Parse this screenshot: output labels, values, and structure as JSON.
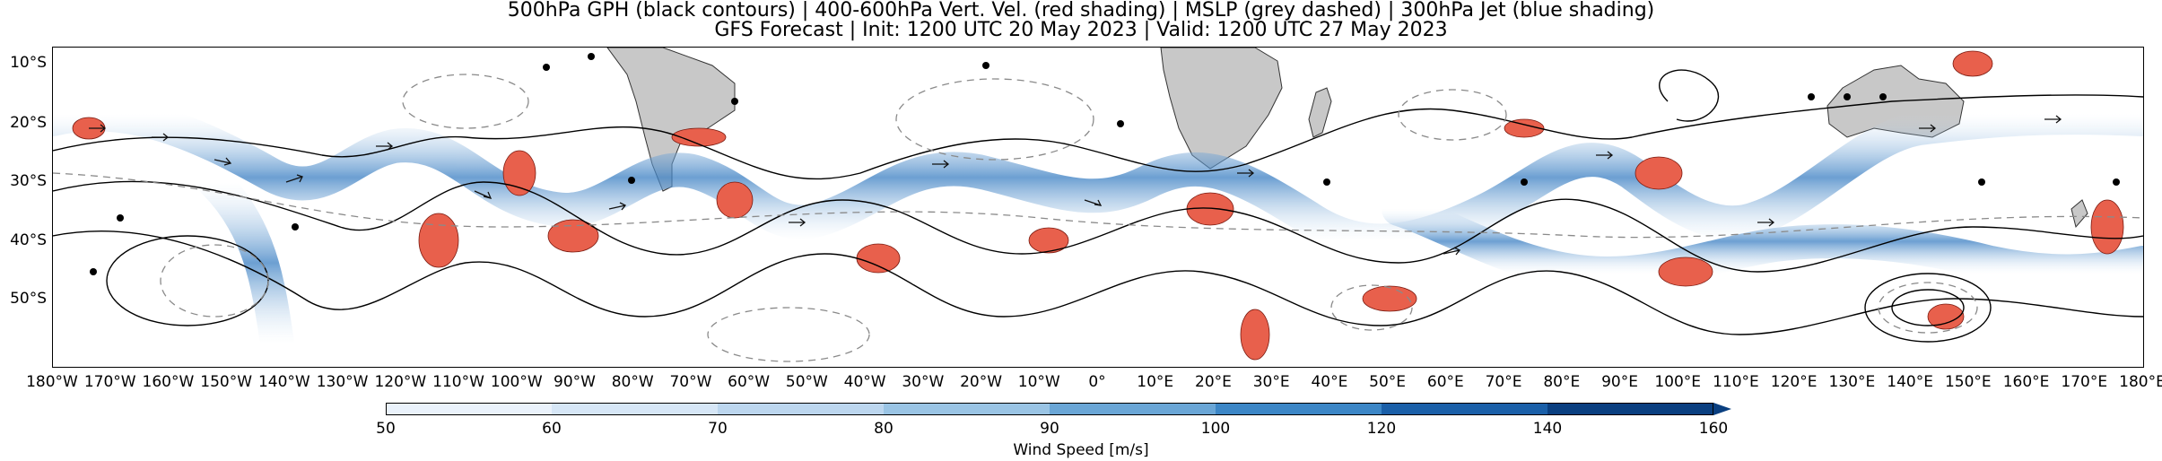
{
  "title": {
    "line1": "500hPa GPH (black contours) | 400-600hPa Vert. Vel. (red shading) | MSLP (grey dashed) | 300hPa Jet (blue shading)",
    "line2": "GFS Forecast | Init: 1200 UTC 20 May 2023 | Valid: 1200 UTC 27 May 2023"
  },
  "axes": {
    "lat_labels": [
      "10°S",
      "20°S",
      "30°S",
      "40°S",
      "50°S"
    ],
    "lon_labels": [
      "180°W",
      "170°W",
      "160°W",
      "150°W",
      "140°W",
      "130°W",
      "120°W",
      "110°W",
      "100°W",
      "90°W",
      "80°W",
      "70°W",
      "60°W",
      "50°W",
      "40°W",
      "30°W",
      "20°W",
      "10°W",
      "0°",
      "10°E",
      "20°E",
      "30°E",
      "40°E",
      "50°E",
      "60°E",
      "70°E",
      "80°E",
      "90°E",
      "100°E",
      "110°E",
      "120°E",
      "130°E",
      "140°E",
      "150°E",
      "160°E",
      "170°E",
      "180°E"
    ]
  },
  "colorbar": {
    "label": "Wind Speed [m/s]",
    "ticks": [
      "50",
      "60",
      "70",
      "80",
      "90",
      "100",
      "120",
      "140",
      "160"
    ],
    "colors": [
      "#ffffff",
      "#eaf2fb",
      "#d6e6f6",
      "#bcd6ee",
      "#9ac4e4",
      "#6aa6d6",
      "#3c86c6",
      "#1a5fa8",
      "#0a3f80"
    ]
  },
  "colors": {
    "land": "#c8c8c8",
    "jet": "#3f82c4",
    "ascent": "#e8604c",
    "gph_contour": "#000000",
    "mslp_contour": "#8a8a8a"
  }
}
